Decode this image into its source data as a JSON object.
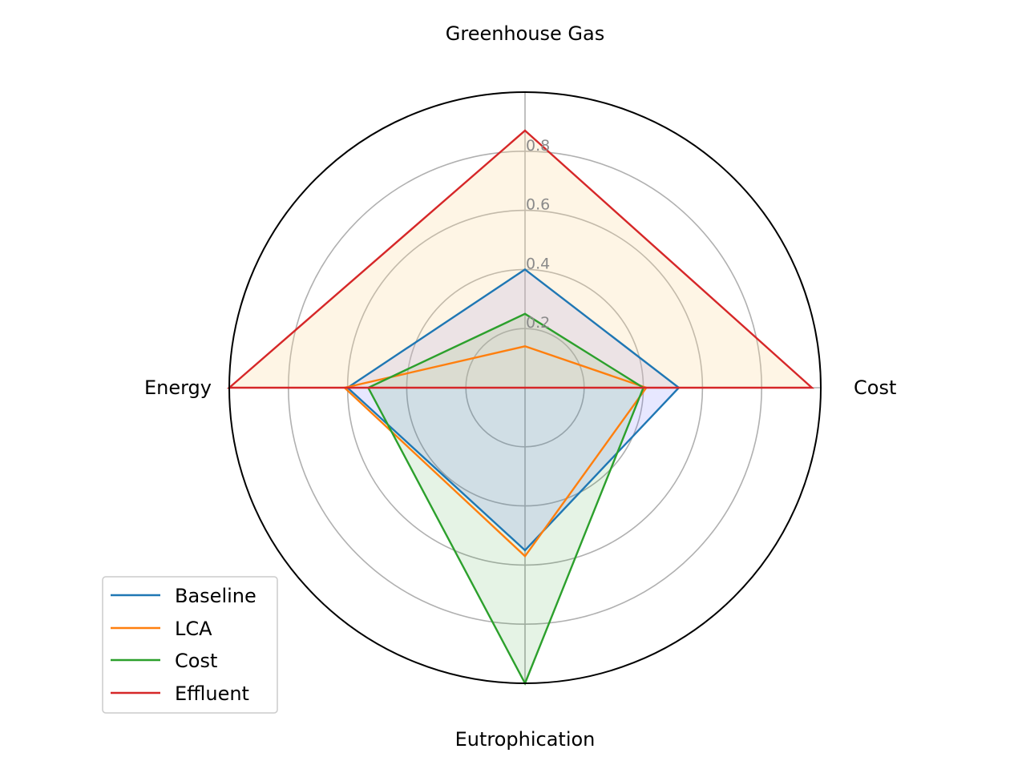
{
  "chart_data": {
    "type": "radar",
    "axes": [
      "Greenhouse Gas",
      "Cost",
      "Eutrophication",
      "Energy"
    ],
    "rlim": [
      0,
      1.0
    ],
    "r_ticks": [
      0.2,
      0.4,
      0.6,
      0.8
    ],
    "r_tick_labels": [
      "0.2",
      "0.4",
      "0.6",
      "0.8"
    ],
    "grid": true,
    "legend_position": "lower-left",
    "series": [
      {
        "name": "Baseline",
        "color": "#1f77b4",
        "fill": "#7b7bff",
        "fill_opacity": 0.18,
        "values": [
          0.4,
          0.52,
          0.55,
          0.6
        ]
      },
      {
        "name": "LCA",
        "color": "#ff7f0e",
        "fill": "#e8b3b3",
        "fill_opacity": 0.0,
        "values": [
          0.14,
          0.41,
          0.57,
          0.61
        ]
      },
      {
        "name": "Cost",
        "color": "#2ca02c",
        "fill": "#2ca02c",
        "fill_opacity": 0.12,
        "values": [
          0.25,
          0.4,
          1.0,
          0.53
        ]
      },
      {
        "name": "Effluent",
        "color": "#d62728",
        "fill": "#fbd79a",
        "fill_opacity": 0.26,
        "values": [
          0.87,
          0.97,
          0.0,
          1.0
        ]
      }
    ]
  }
}
